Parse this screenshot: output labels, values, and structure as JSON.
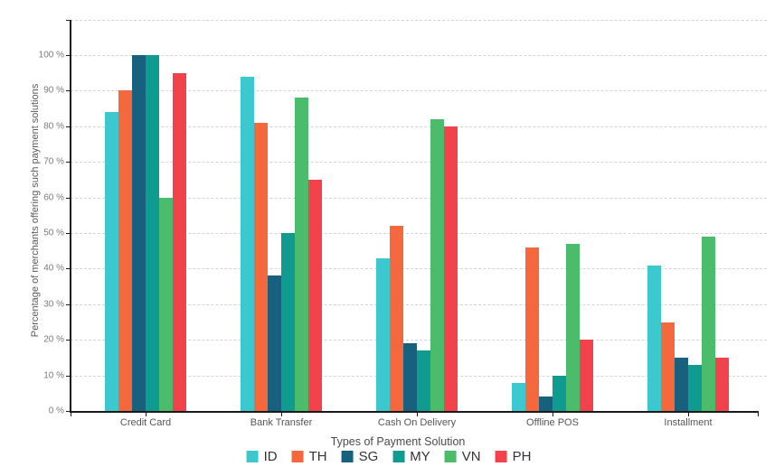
{
  "chart_data": {
    "type": "bar",
    "title": "",
    "xlabel": "Types of Payment Solution",
    "ylabel": "Percentage of merchants offering such payment solutions",
    "categories": [
      "Credit Card",
      "Bank Transfer",
      "Cash On Delivery",
      "Offline POS",
      "Installment"
    ],
    "series": [
      {
        "name": "ID",
        "color": "#3BC8CF",
        "values": [
          84,
          94,
          43,
          8,
          41
        ]
      },
      {
        "name": "TH",
        "color": "#F5673C",
        "values": [
          90,
          81,
          52,
          46,
          25
        ]
      },
      {
        "name": "SG",
        "color": "#17607E",
        "values": [
          100,
          38,
          19,
          4,
          15
        ]
      },
      {
        "name": "MY",
        "color": "#109B91",
        "values": [
          100,
          50,
          17,
          10,
          13
        ]
      },
      {
        "name": "VN",
        "color": "#4ABC6C",
        "values": [
          60,
          88,
          82,
          47,
          49
        ]
      },
      {
        "name": "PH",
        "color": "#F2434D",
        "values": [
          95,
          65,
          80,
          20,
          15
        ]
      }
    ],
    "ytick_labels": [
      "0 %",
      "10 %",
      "20 %",
      "30 %",
      "40 %",
      "50 %",
      "60 %",
      "70 %",
      "80 %",
      "90 %",
      "100 %"
    ],
    "ylim": [
      0,
      110
    ],
    "ytick_step": 10,
    "grid": "horizontal-dashed",
    "legend_position": "bottom"
  }
}
